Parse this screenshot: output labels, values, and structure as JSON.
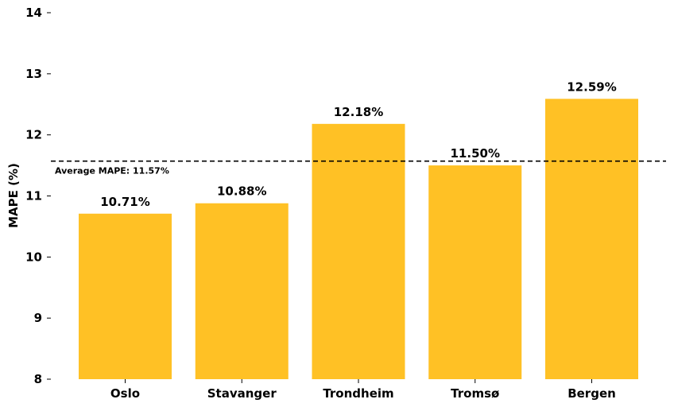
{
  "chart_data": {
    "type": "bar",
    "categories": [
      "Oslo",
      "Stavanger",
      "Trondheim",
      "Tromsø",
      "Bergen"
    ],
    "values": [
      10.71,
      10.88,
      12.18,
      11.5,
      12.59
    ],
    "value_labels": [
      "10.71%",
      "10.88%",
      "12.18%",
      "11.50%",
      "12.59%"
    ],
    "ylabel": "MAPE (%)",
    "xlabel": "",
    "ylim": [
      8,
      14
    ],
    "yticks": [
      "8",
      "9",
      "10",
      "11",
      "12",
      "13",
      "14"
    ],
    "bar_color": "#FFC125",
    "reference_line": {
      "value": 11.57,
      "style": "dashed",
      "color": "#000000",
      "label": "Average MAPE: 11.57%"
    },
    "grid": false
  }
}
